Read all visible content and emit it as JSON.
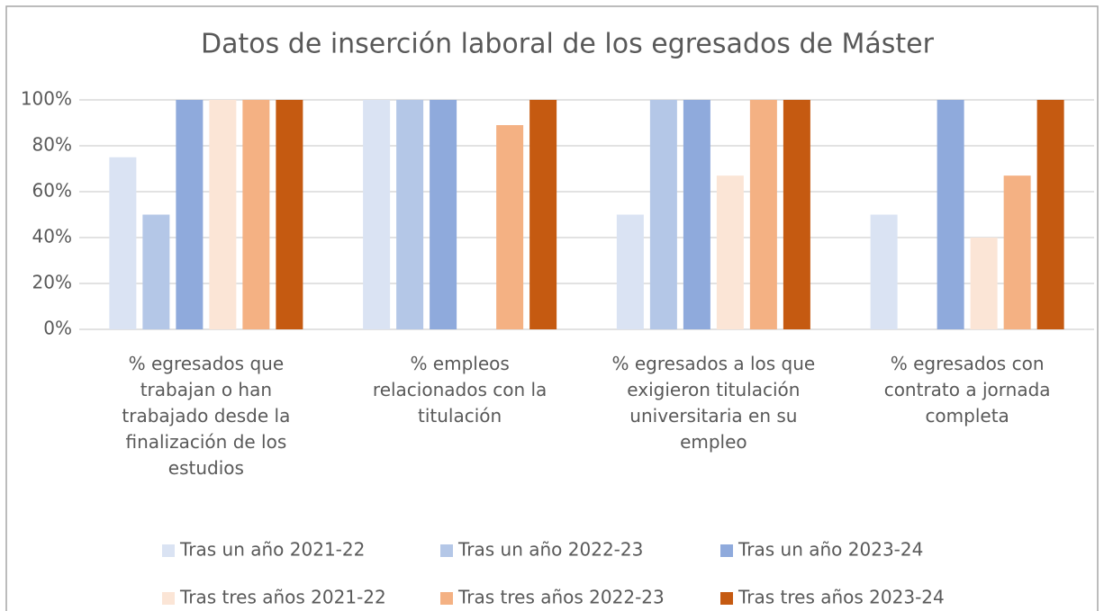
{
  "chart_data": {
    "type": "bar",
    "title": "Datos de inserción laboral de los egresados de Máster",
    "categories": [
      "% egresados que trabajan o han trabajado desde la finalización de los estudios",
      "% empleos relacionados con la titulación",
      "% egresados a los que exigieron titulación universitaria en su empleo",
      "% egresados con contrato a jornada completa"
    ],
    "series": [
      {
        "name": "Tras un año 2021-22",
        "color": "#dae3f3",
        "values": [
          75,
          100,
          50,
          50
        ]
      },
      {
        "name": "Tras un año 2022-23",
        "color": "#b4c7e7",
        "values": [
          50,
          100,
          100,
          null
        ]
      },
      {
        "name": "Tras un año 2023-24",
        "color": "#8faadc",
        "values": [
          100,
          100,
          100,
          100
        ]
      },
      {
        "name": "Tras tres años 2021-22",
        "color": "#fbe5d6",
        "values": [
          100,
          null,
          67,
          40
        ]
      },
      {
        "name": "Tras tres años 2022-23",
        "color": "#f4b183",
        "values": [
          100,
          89,
          100,
          67
        ]
      },
      {
        "name": "Tras tres años 2023-24",
        "color": "#c55a11",
        "values": [
          100,
          100,
          100,
          100
        ]
      }
    ],
    "ylim": [
      0,
      100
    ],
    "yticks": [
      {
        "value": 0,
        "label": "0%"
      },
      {
        "value": 20,
        "label": "20%"
      },
      {
        "value": 40,
        "label": "40%"
      },
      {
        "value": 60,
        "label": "60%"
      },
      {
        "value": 80,
        "label": "80%"
      },
      {
        "value": 100,
        "label": "100%"
      }
    ],
    "grid": true,
    "legend": "bottom"
  }
}
